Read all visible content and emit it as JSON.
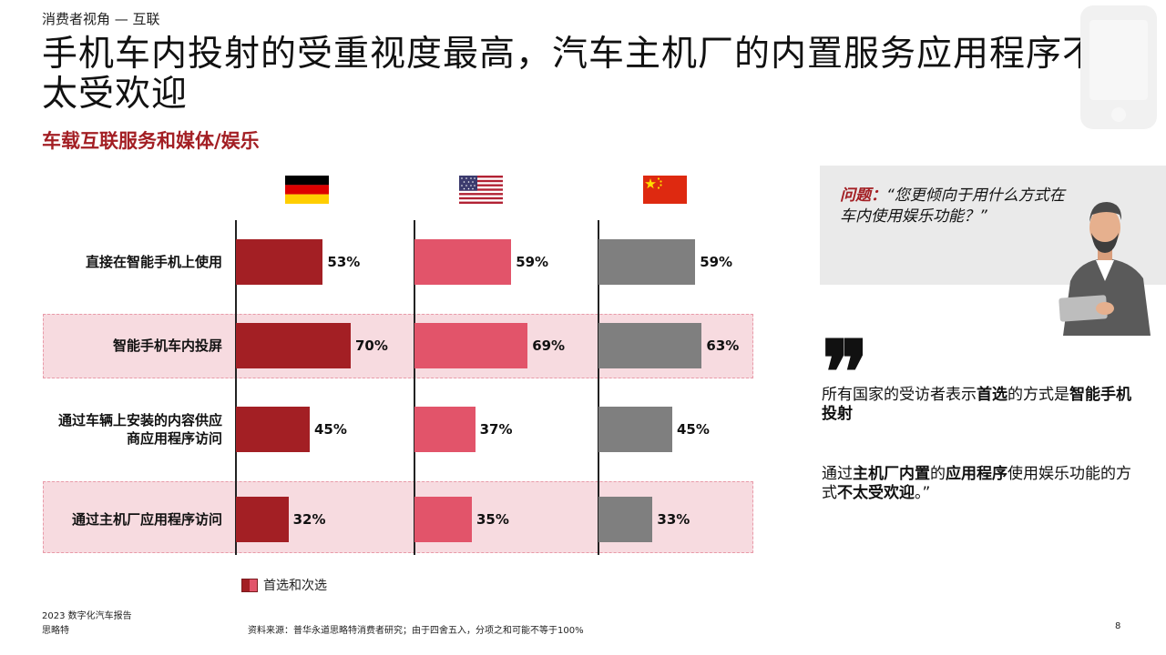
{
  "header": {
    "kicker": "消费者视角 — 互联",
    "title": "手机车内投射的受重视度最高，汽车主机厂的内置服务应用程序不太受欢迎",
    "subtitle": "车载互联服务和媒体/娱乐"
  },
  "chart_data": {
    "type": "bar",
    "orientation": "horizontal",
    "layout": "three panels side by side (one per country flag)",
    "panels": [
      "Germany",
      "USA",
      "China"
    ],
    "categories": [
      "直接在智能手机上使用",
      "智能手机车内投屏",
      "通过车辆上安装的内容供应商应用程序访问",
      "通过主机厂应用程序访问"
    ],
    "category_lines": [
      [
        "直接在智能手机上使用"
      ],
      [
        "智能手机车内投屏"
      ],
      [
        "通过车辆上安装的内容供应",
        "商应用程序访问"
      ],
      [
        "通过主机厂应用程序访问"
      ]
    ],
    "highlighted_categories": [
      "智能手机车内投屏",
      "通过主机厂应用程序访问"
    ],
    "series": [
      {
        "panel": "Germany",
        "color": "#a31f24",
        "values": [
          53,
          70,
          45,
          32
        ],
        "labels": [
          "53%",
          "70%",
          "45%",
          "32%"
        ]
      },
      {
        "panel": "USA",
        "color": "#e2546a",
        "values": [
          59,
          69,
          37,
          35
        ],
        "labels": [
          "59%",
          "69%",
          "37%",
          "35%"
        ]
      },
      {
        "panel": "China",
        "color": "#7f7f7f",
        "values": [
          59,
          63,
          45,
          33
        ],
        "labels": [
          "59%",
          "63%",
          "45%",
          "33%"
        ]
      }
    ],
    "unit": "%",
    "legend": {
      "label": "首选和次选",
      "placement": "bottom-left"
    }
  },
  "question": {
    "label": "问题：",
    "text": "“您更倾向于用什么方式在车内使用娱乐功能？”"
  },
  "quote": {
    "mark": "❞",
    "p1": [
      {
        "t": "所有国家的受访者表示",
        "b": false
      },
      {
        "t": "首选",
        "b": true
      },
      {
        "t": "的方式是",
        "b": false
      },
      {
        "t": "智能手机投射",
        "b": true
      }
    ],
    "p2": [
      {
        "t": "通过",
        "b": false
      },
      {
        "t": "主机厂内置",
        "b": true
      },
      {
        "t": "的",
        "b": false
      },
      {
        "t": "应用程序",
        "b": true
      },
      {
        "t": "使用娱乐功能的方式",
        "b": false
      },
      {
        "t": "不太受欢迎",
        "b": true
      },
      {
        "t": "。”",
        "b": false
      }
    ]
  },
  "footer": {
    "line1": "2023 数字化汽车报告",
    "line2": "思略特",
    "source": "资料来源：普华永道思略特消费者研究；由于四舍五入，分项之和可能不等于100%",
    "page": "8"
  },
  "colors": {
    "accent": "#a31f24",
    "band": "#f7dbe0",
    "usa": "#e2546a",
    "china": "#7f7f7f"
  }
}
